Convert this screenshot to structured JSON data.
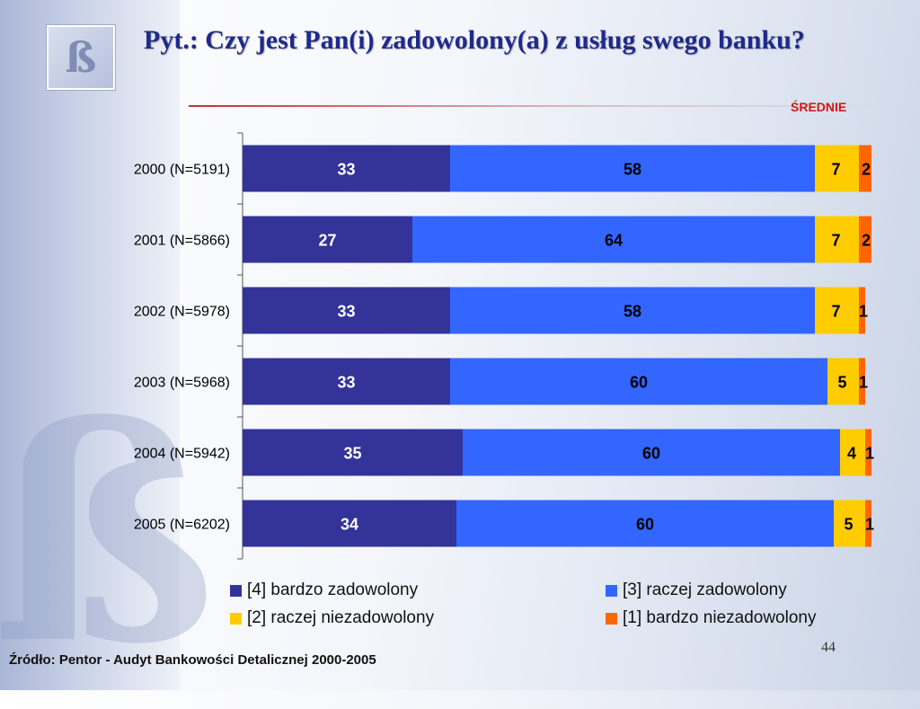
{
  "title": "Pyt.: Czy jest Pan(i) zadowolony(a) z usług swego banku?",
  "badge": "ŚREDNIE",
  "logo_glyph": "ß",
  "source": "Źródło: Pentor  - Audyt Bankowości Detalicznej 2000-2005",
  "page_number": "44",
  "colors": {
    "very_satisfied": "#33339a",
    "rather_satisfied": "#3366ff",
    "rather_dissatisfied": "#ffcc00",
    "very_dissatisfied": "#ff6600",
    "title": "#1f2a8a",
    "badge": "#d01818"
  },
  "chart_data": {
    "type": "bar",
    "orientation": "horizontal",
    "stacked": true,
    "categories": [
      "2000 (N=5191)",
      "2001 (N=5866)",
      "2002 (N=5978)",
      "2003 (N=5968)",
      "2004 (N=5942)",
      "2005 (N=6202)"
    ],
    "series": [
      {
        "name": "[4] bardzo zadowolony",
        "color": "#33339a",
        "values": [
          33,
          27,
          33,
          33,
          35,
          34
        ]
      },
      {
        "name": "[3] raczej zadowolony",
        "color": "#3366ff",
        "values": [
          58,
          64,
          58,
          60,
          60,
          60
        ]
      },
      {
        "name": "[2] raczej niezadowolony",
        "color": "#ffcc00",
        "values": [
          7,
          7,
          7,
          5,
          4,
          5
        ]
      },
      {
        "name": "[1] bardzo niezadowolony",
        "color": "#ff6600",
        "values": [
          2,
          2,
          1,
          1,
          1,
          1
        ]
      }
    ],
    "xlim": [
      0,
      100
    ],
    "legend": "bottom",
    "grid": false
  }
}
